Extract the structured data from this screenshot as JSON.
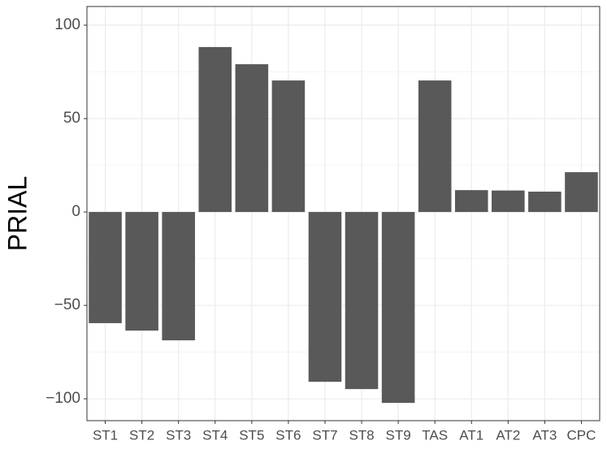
{
  "chart_data": {
    "type": "bar",
    "y_label": "PRIAL",
    "categories": [
      "ST1",
      "ST2",
      "ST3",
      "ST4",
      "ST5",
      "ST6",
      "ST7",
      "ST8",
      "ST9",
      "TAS",
      "AT1",
      "AT2",
      "AT3",
      "CPC"
    ],
    "values": [
      -59.5,
      -63.5,
      -68.7,
      88.3,
      79.1,
      70.4,
      -90.9,
      -94.8,
      -102.2,
      70.4,
      11.7,
      11.5,
      10.9,
      21.3
    ],
    "color": "#595959",
    "ylim": [
      -111.7,
      110
    ],
    "yticks": [
      {
        "value": -100,
        "label": "−100"
      },
      {
        "value": -50,
        "label": "−50"
      },
      0,
      50,
      100
    ],
    "grid": true
  }
}
